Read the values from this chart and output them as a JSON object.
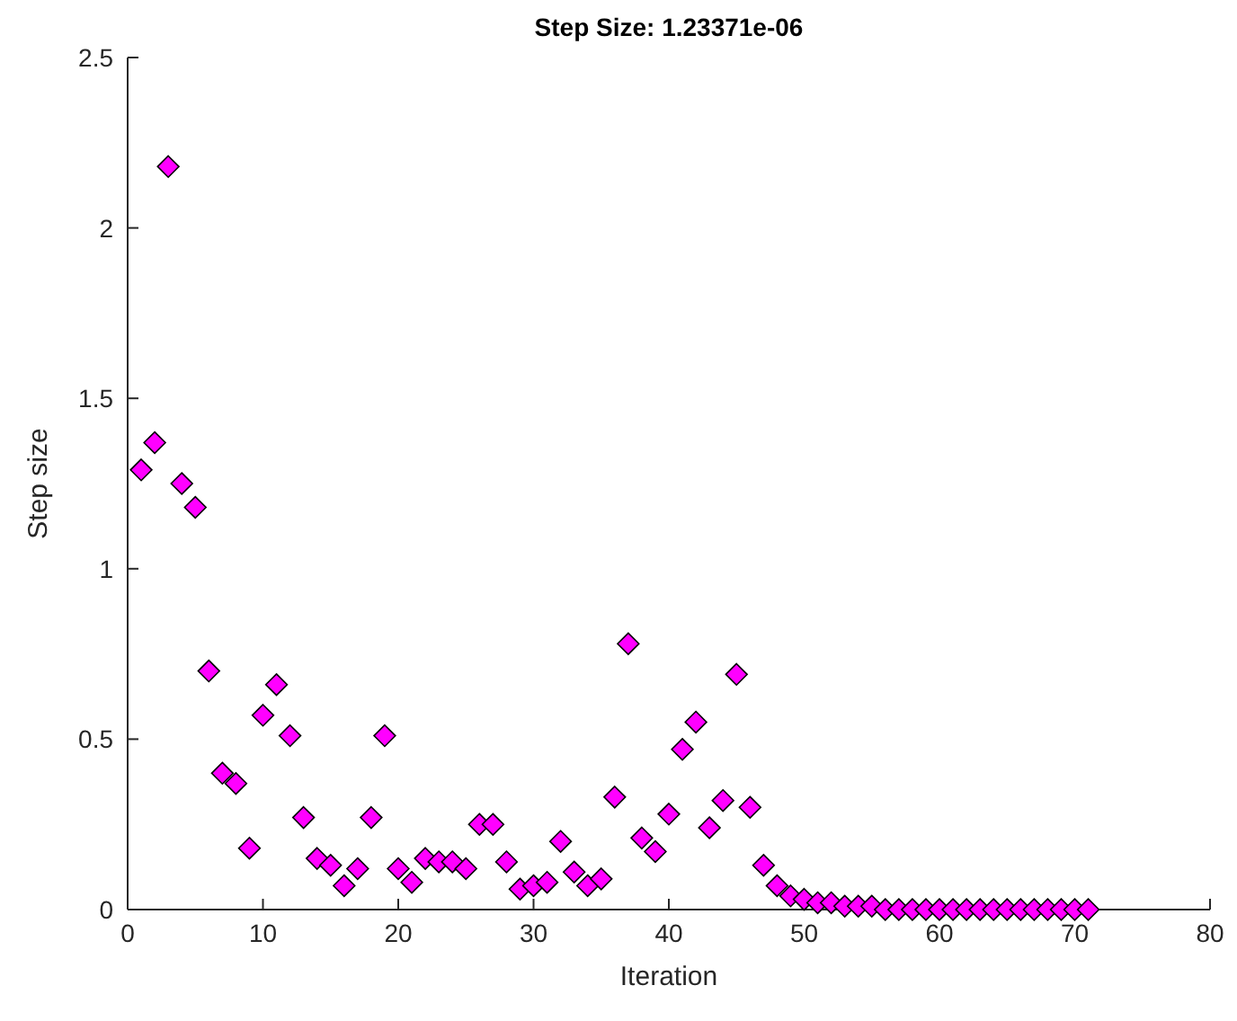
{
  "chart_data": {
    "type": "scatter",
    "title": "Step Size: 1.23371e-06",
    "xlabel": "Iteration",
    "ylabel": "Step size",
    "x": [
      1,
      2,
      3,
      4,
      5,
      6,
      7,
      8,
      9,
      10,
      11,
      12,
      13,
      14,
      15,
      16,
      17,
      18,
      19,
      20,
      21,
      22,
      23,
      24,
      25,
      26,
      27,
      28,
      29,
      30,
      31,
      32,
      33,
      34,
      35,
      36,
      37,
      38,
      39,
      40,
      41,
      42,
      43,
      44,
      45,
      46,
      47,
      48,
      49,
      50,
      51,
      52,
      53,
      54,
      55,
      56,
      57,
      58,
      59,
      60,
      61,
      62,
      63,
      64,
      65,
      66,
      67,
      68,
      69,
      70,
      71
    ],
    "series": [
      {
        "color": "#ff00ff",
        "values": [
          1.29,
          1.37,
          2.18,
          1.25,
          1.18,
          0.7,
          0.4,
          0.37,
          0.18,
          0.57,
          0.66,
          0.51,
          0.27,
          0.15,
          0.13,
          0.07,
          0.12,
          0.27,
          0.51,
          0.12,
          0.08,
          0.15,
          0.14,
          0.14,
          0.12,
          0.25,
          0.25,
          0.14,
          0.06,
          0.07,
          0.08,
          0.2,
          0.11,
          0.07,
          0.09,
          0.33,
          0.78,
          0.21,
          0.17,
          0.28,
          0.47,
          0.55,
          0.24,
          0.32,
          0.69,
          0.3,
          0.13,
          0.07,
          0.04,
          0.03,
          0.02,
          0.02,
          0.01,
          0.01,
          0.01,
          0,
          0,
          0,
          0,
          0,
          0,
          0,
          0,
          0,
          0,
          0,
          0,
          0,
          0,
          0,
          0
        ]
      }
    ],
    "xlim": [
      0,
      80
    ],
    "xticks": [
      0,
      10,
      20,
      30,
      40,
      50,
      60,
      70,
      80
    ],
    "ylim": [
      0,
      2.5
    ],
    "yticks": [
      0,
      0.5,
      1,
      1.5,
      2,
      2.5
    ],
    "grid": false,
    "marker": "diamond"
  }
}
